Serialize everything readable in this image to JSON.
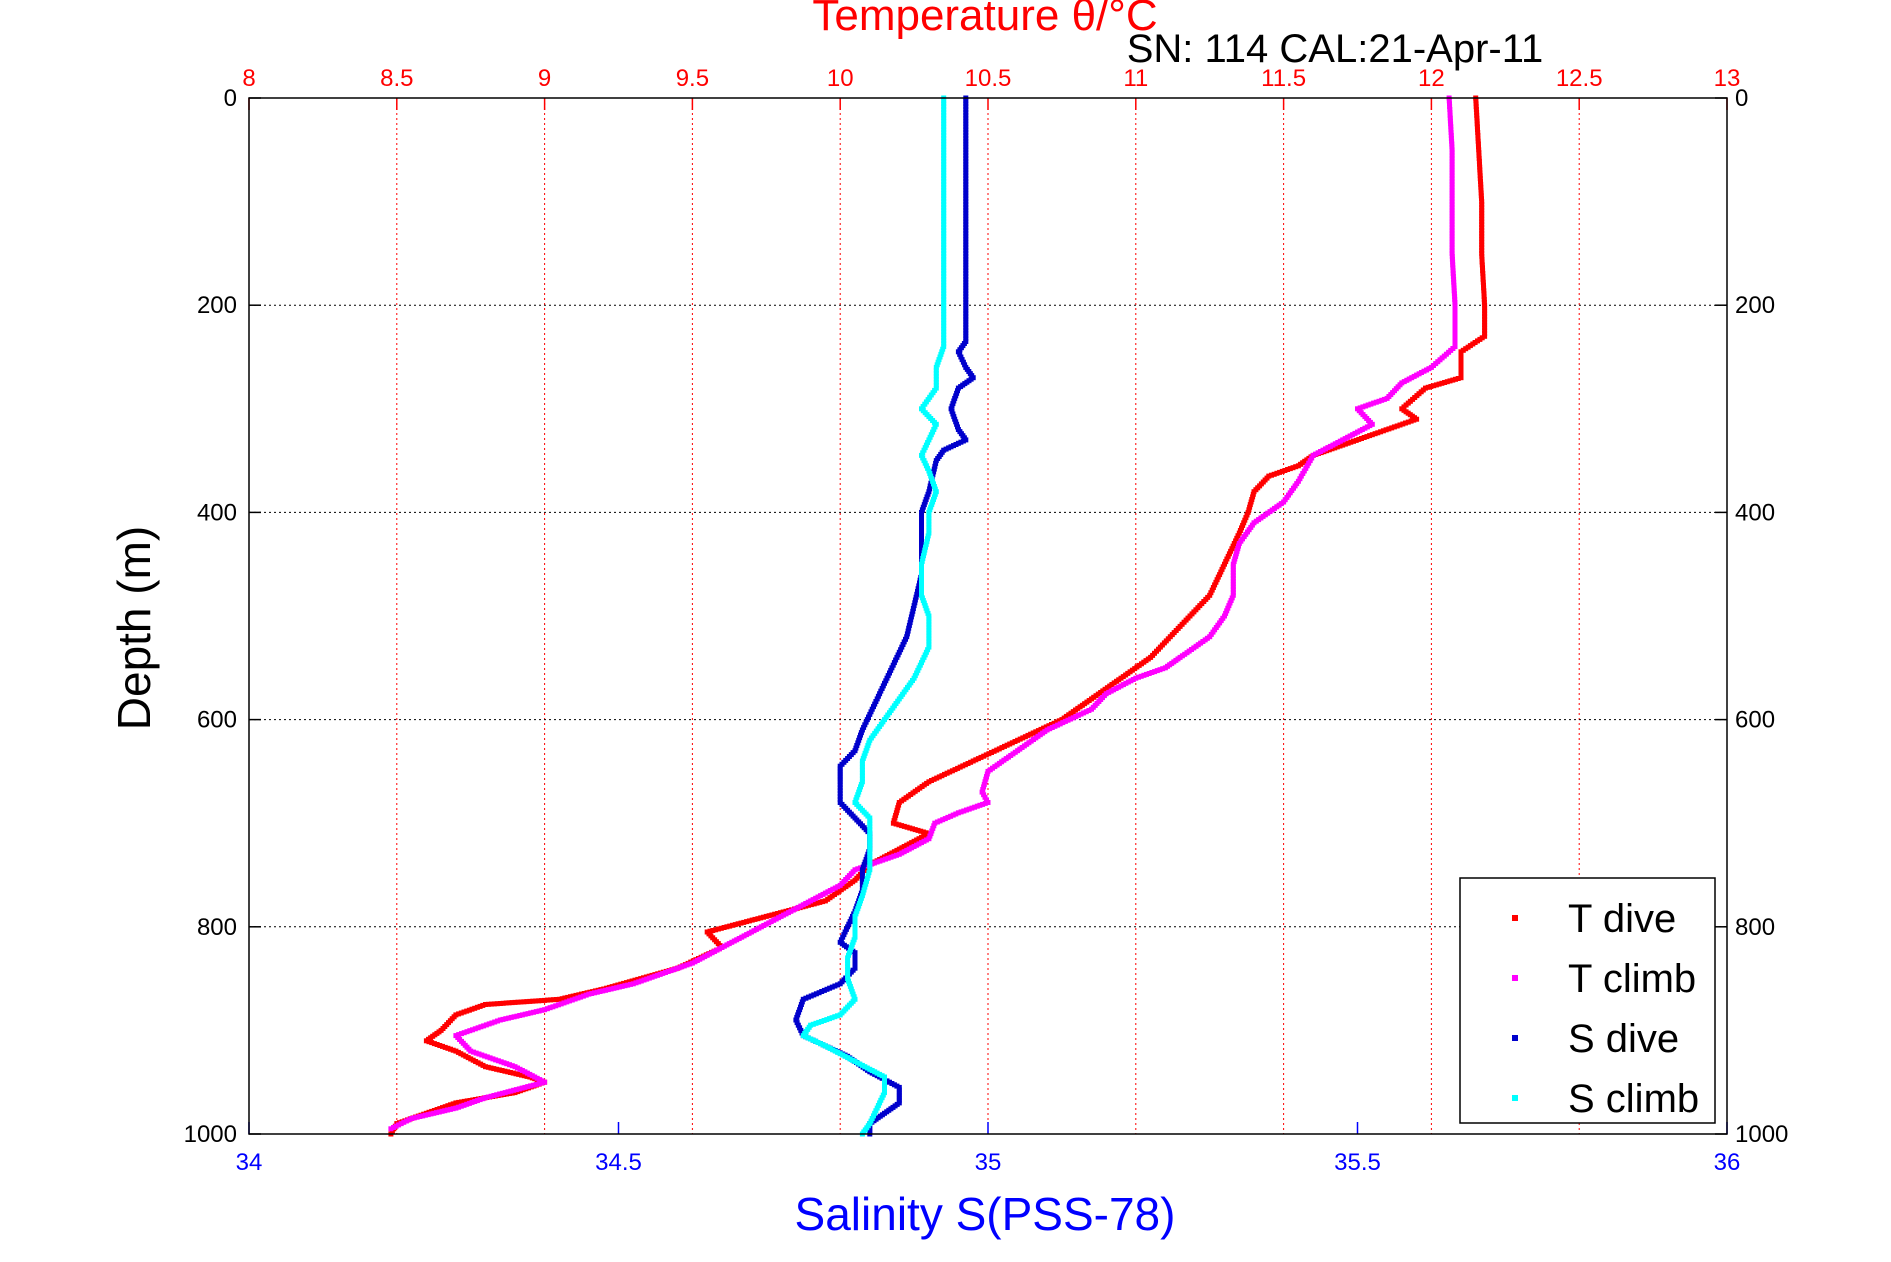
{
  "chart_data": {
    "type": "scatter",
    "title": "SN: 114  CAL:21-Apr-11",
    "top_axis": {
      "label": "Temperature θ/°C",
      "range": [
        8,
        13
      ],
      "ticks": [
        "8",
        "8.5",
        "9",
        "9.5",
        "10",
        "10.5",
        "11",
        "11.5",
        "12",
        "12.5",
        "13"
      ],
      "grid": true,
      "color": "#ff0000"
    },
    "bottom_axis": {
      "label": "Salinity S(PSS-78)",
      "range": [
        34,
        36
      ],
      "ticks": [
        "34",
        "34.5",
        "35",
        "35.5",
        "36"
      ],
      "color": "#0000ff"
    },
    "y_axis": {
      "label": "Depth (m)",
      "range": [
        0,
        1000
      ],
      "reversed": true,
      "ticks": [
        "0",
        "200",
        "400",
        "600",
        "800",
        "1000"
      ],
      "grid": true
    },
    "legend": {
      "position": "bottom-right",
      "entries": [
        "T dive",
        "T climb",
        "S dive",
        "S climb"
      ]
    },
    "series": [
      {
        "name": "T dive",
        "axis": "temperature",
        "color": "#ff0000",
        "points": [
          [
            12.15,
            0
          ],
          [
            12.16,
            50
          ],
          [
            12.17,
            100
          ],
          [
            12.17,
            150
          ],
          [
            12.18,
            200
          ],
          [
            12.18,
            230
          ],
          [
            12.1,
            245
          ],
          [
            12.1,
            270
          ],
          [
            11.98,
            280
          ],
          [
            11.9,
            300
          ],
          [
            11.95,
            310
          ],
          [
            11.8,
            325
          ],
          [
            11.7,
            335
          ],
          [
            11.6,
            345
          ],
          [
            11.55,
            355
          ],
          [
            11.45,
            365
          ],
          [
            11.4,
            380
          ],
          [
            11.38,
            400
          ],
          [
            11.35,
            420
          ],
          [
            11.3,
            450
          ],
          [
            11.25,
            480
          ],
          [
            11.15,
            510
          ],
          [
            11.05,
            540
          ],
          [
            10.95,
            560
          ],
          [
            10.85,
            580
          ],
          [
            10.75,
            600
          ],
          [
            10.6,
            620
          ],
          [
            10.45,
            640
          ],
          [
            10.3,
            660
          ],
          [
            10.2,
            680
          ],
          [
            10.18,
            700
          ],
          [
            10.3,
            710
          ],
          [
            10.2,
            725
          ],
          [
            10.1,
            740
          ],
          [
            10.05,
            755
          ],
          [
            9.95,
            775
          ],
          [
            9.75,
            790
          ],
          [
            9.55,
            805
          ],
          [
            9.6,
            820
          ],
          [
            9.45,
            840
          ],
          [
            9.2,
            860
          ],
          [
            9.05,
            870
          ],
          [
            8.8,
            875
          ],
          [
            8.7,
            885
          ],
          [
            8.65,
            900
          ],
          [
            8.6,
            910
          ],
          [
            8.7,
            920
          ],
          [
            8.8,
            935
          ],
          [
            8.95,
            945
          ],
          [
            9.0,
            950
          ],
          [
            8.9,
            960
          ],
          [
            8.7,
            970
          ],
          [
            8.6,
            980
          ],
          [
            8.5,
            990
          ],
          [
            8.48,
            1000
          ]
        ]
      },
      {
        "name": "T climb",
        "axis": "temperature",
        "color": "#ff00ff",
        "points": [
          [
            12.06,
            0
          ],
          [
            12.07,
            50
          ],
          [
            12.07,
            100
          ],
          [
            12.07,
            150
          ],
          [
            12.08,
            200
          ],
          [
            12.08,
            240
          ],
          [
            12.0,
            260
          ],
          [
            11.9,
            275
          ],
          [
            11.85,
            290
          ],
          [
            11.75,
            300
          ],
          [
            11.8,
            315
          ],
          [
            11.7,
            330
          ],
          [
            11.6,
            345
          ],
          [
            11.55,
            370
          ],
          [
            11.5,
            390
          ],
          [
            11.4,
            410
          ],
          [
            11.35,
            430
          ],
          [
            11.33,
            450
          ],
          [
            11.33,
            480
          ],
          [
            11.3,
            500
          ],
          [
            11.25,
            520
          ],
          [
            11.15,
            540
          ],
          [
            11.1,
            550
          ],
          [
            11.0,
            560
          ],
          [
            10.9,
            575
          ],
          [
            10.85,
            590
          ],
          [
            10.7,
            610
          ],
          [
            10.6,
            630
          ],
          [
            10.5,
            650
          ],
          [
            10.48,
            670
          ],
          [
            10.5,
            680
          ],
          [
            10.4,
            690
          ],
          [
            10.32,
            700
          ],
          [
            10.3,
            715
          ],
          [
            10.2,
            730
          ],
          [
            10.05,
            745
          ],
          [
            10.0,
            760
          ],
          [
            9.9,
            775
          ],
          [
            9.8,
            790
          ],
          [
            9.7,
            805
          ],
          [
            9.6,
            820
          ],
          [
            9.5,
            835
          ],
          [
            9.4,
            845
          ],
          [
            9.3,
            855
          ],
          [
            9.15,
            865
          ],
          [
            9.0,
            880
          ],
          [
            8.85,
            890
          ],
          [
            8.7,
            905
          ],
          [
            8.75,
            920
          ],
          [
            8.9,
            935
          ],
          [
            9.0,
            950
          ],
          [
            8.8,
            965
          ],
          [
            8.7,
            975
          ],
          [
            8.55,
            985
          ],
          [
            8.48,
            995
          ]
        ]
      },
      {
        "name": "S dive",
        "axis": "salinity",
        "color": "#0000cc",
        "points": [
          [
            34.97,
            0
          ],
          [
            34.97,
            50
          ],
          [
            34.97,
            100
          ],
          [
            34.97,
            150
          ],
          [
            34.97,
            200
          ],
          [
            34.97,
            235
          ],
          [
            34.96,
            245
          ],
          [
            34.97,
            260
          ],
          [
            34.98,
            270
          ],
          [
            34.96,
            280
          ],
          [
            34.95,
            300
          ],
          [
            34.96,
            320
          ],
          [
            34.97,
            330
          ],
          [
            34.94,
            340
          ],
          [
            34.93,
            350
          ],
          [
            34.92,
            380
          ],
          [
            34.91,
            400
          ],
          [
            34.91,
            430
          ],
          [
            34.91,
            460
          ],
          [
            34.9,
            490
          ],
          [
            34.89,
            520
          ],
          [
            34.87,
            550
          ],
          [
            34.85,
            580
          ],
          [
            34.83,
            610
          ],
          [
            34.82,
            630
          ],
          [
            34.8,
            645
          ],
          [
            34.8,
            660
          ],
          [
            34.8,
            680
          ],
          [
            34.82,
            695
          ],
          [
            34.84,
            710
          ],
          [
            34.84,
            725
          ],
          [
            34.83,
            745
          ],
          [
            34.83,
            765
          ],
          [
            34.82,
            785
          ],
          [
            34.81,
            800
          ],
          [
            34.8,
            815
          ],
          [
            34.82,
            825
          ],
          [
            34.82,
            840
          ],
          [
            34.8,
            855
          ],
          [
            34.75,
            870
          ],
          [
            34.74,
            890
          ],
          [
            34.75,
            905
          ],
          [
            34.78,
            915
          ],
          [
            34.81,
            925
          ],
          [
            34.84,
            940
          ],
          [
            34.88,
            955
          ],
          [
            34.88,
            970
          ],
          [
            34.86,
            980
          ],
          [
            34.84,
            990
          ],
          [
            34.84,
            1000
          ]
        ]
      },
      {
        "name": "S climb",
        "axis": "salinity",
        "color": "#00ffff",
        "points": [
          [
            34.94,
            0
          ],
          [
            34.94,
            50
          ],
          [
            34.94,
            100
          ],
          [
            34.94,
            150
          ],
          [
            34.94,
            200
          ],
          [
            34.94,
            240
          ],
          [
            34.93,
            260
          ],
          [
            34.93,
            280
          ],
          [
            34.91,
            300
          ],
          [
            34.93,
            315
          ],
          [
            34.92,
            330
          ],
          [
            34.91,
            345
          ],
          [
            34.92,
            360
          ],
          [
            34.93,
            380
          ],
          [
            34.92,
            400
          ],
          [
            34.92,
            420
          ],
          [
            34.91,
            450
          ],
          [
            34.91,
            480
          ],
          [
            34.92,
            500
          ],
          [
            34.92,
            530
          ],
          [
            34.9,
            560
          ],
          [
            34.88,
            580
          ],
          [
            34.86,
            600
          ],
          [
            34.84,
            620
          ],
          [
            34.83,
            640
          ],
          [
            34.83,
            660
          ],
          [
            34.82,
            680
          ],
          [
            34.84,
            695
          ],
          [
            34.84,
            720
          ],
          [
            34.84,
            745
          ],
          [
            34.83,
            770
          ],
          [
            34.82,
            790
          ],
          [
            34.82,
            810
          ],
          [
            34.81,
            830
          ],
          [
            34.81,
            850
          ],
          [
            34.82,
            870
          ],
          [
            34.8,
            885
          ],
          [
            34.76,
            895
          ],
          [
            34.75,
            905
          ],
          [
            34.78,
            915
          ],
          [
            34.82,
            930
          ],
          [
            34.86,
            945
          ],
          [
            34.86,
            960
          ],
          [
            34.85,
            975
          ],
          [
            34.84,
            990
          ],
          [
            34.83,
            1000
          ]
        ]
      }
    ]
  }
}
